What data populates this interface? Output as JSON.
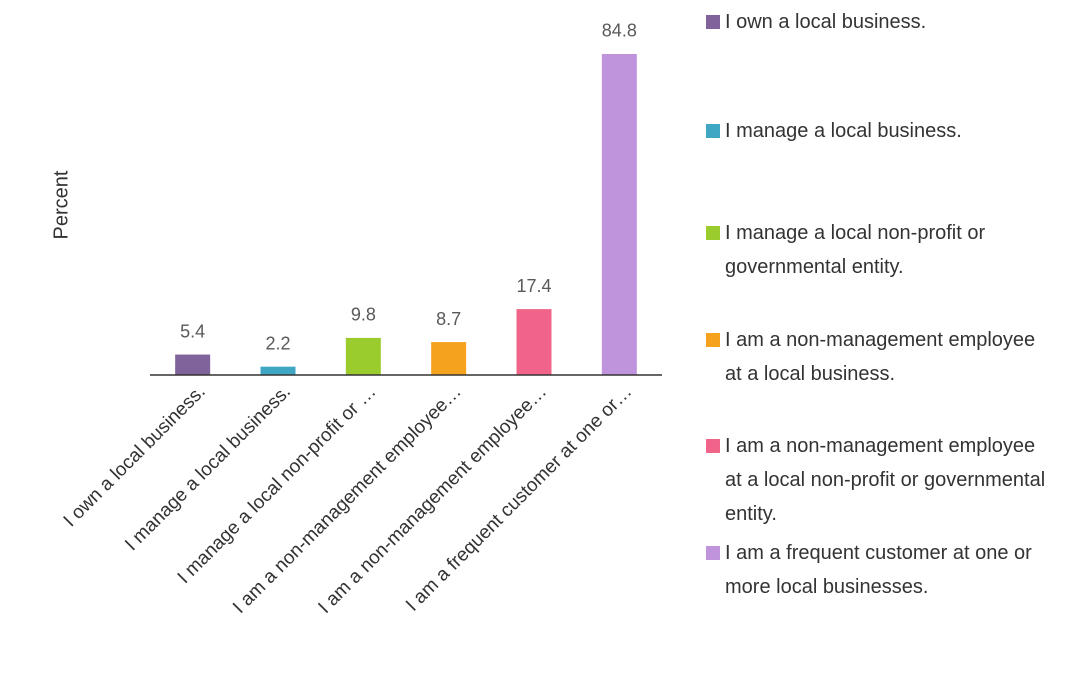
{
  "chart_data": {
    "type": "bar",
    "y_label": "Percent",
    "categories": [
      "I own a local business.",
      "I manage a local business.",
      "I manage a local non-profit or …",
      "I am a non-management employee…",
      "I am a non-management employee…",
      "I am a frequent customer at one or…"
    ],
    "values": [
      5.4,
      2.2,
      9.8,
      8.7,
      17.4,
      84.8
    ],
    "colors": [
      "#80639a",
      "#3fa7c4",
      "#9bcc2e",
      "#f5a21e",
      "#f0648a",
      "#bf94dd"
    ],
    "legend": [
      "I own a local business.",
      "I manage a local business.",
      "I manage a local non-profit or governmental entity.",
      "I am a non-management employee at a local business.",
      "I am a non-management employee at a local non-profit or governmental entity.",
      "I am a frequent customer at one or more local businesses."
    ],
    "ylim": [
      0,
      90
    ]
  }
}
